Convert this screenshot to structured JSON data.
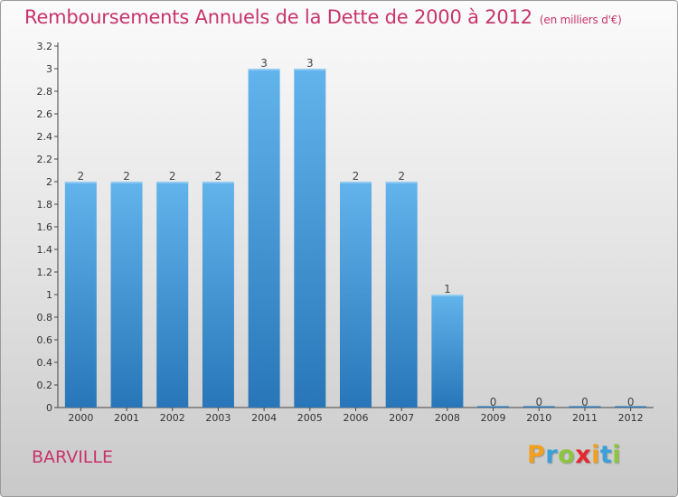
{
  "header": {
    "title": "Remboursements Annuels de la Dette de 2000 à 2012",
    "unit": "(en milliers d'€)"
  },
  "commune": "BARVILLE",
  "logo": {
    "letters": [
      "P",
      "r",
      "o",
      "x",
      "i",
      "t",
      "i"
    ],
    "colors": [
      "#f0a01e",
      "#3aa0d8",
      "#8cc63f",
      "#e8262e",
      "#f0a01e",
      "#3aa0d8",
      "#8cc63f"
    ]
  },
  "colors": {
    "bar_light": "#62b4ec",
    "bar_dark": "#2876b8",
    "accent": "#c8346c"
  },
  "chart_data": {
    "type": "bar",
    "title": "Remboursements Annuels de la Dette de 2000 à 2012",
    "subtitle": "(en milliers d'€)",
    "categories": [
      "2000",
      "2001",
      "2002",
      "2003",
      "2004",
      "2005",
      "2006",
      "2007",
      "2008",
      "2009",
      "2010",
      "2011",
      "2012"
    ],
    "values": [
      2,
      2,
      2,
      2,
      3,
      3,
      2,
      2,
      1,
      0,
      0,
      0,
      0
    ],
    "value_labels": [
      "2",
      "2",
      "2",
      "2",
      "3",
      "3",
      "2",
      "2",
      "1",
      "0",
      "0",
      "0",
      "0"
    ],
    "y_ticks": [
      "0",
      "0.2",
      "0.4",
      "0.6",
      "0.8",
      "1",
      "1.2",
      "1.4",
      "1.6",
      "1.8",
      "2",
      "2.2",
      "2.4",
      "2.6",
      "2.8",
      "3",
      "3.2"
    ],
    "ylim": [
      0,
      3.2
    ],
    "grid": false,
    "legend": "none"
  }
}
